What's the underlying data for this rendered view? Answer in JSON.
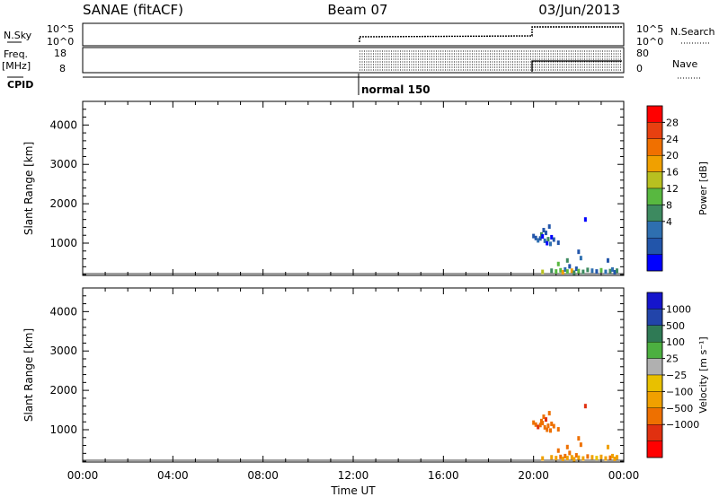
{
  "header": {
    "station": "SANAE (fitACF)",
    "beam": "Beam 07",
    "date": "03/Jun/2013"
  },
  "summary_panels": {
    "nsky_label": "N.Sky",
    "nsky_ticks": [
      "10^5",
      "10^0"
    ],
    "nsearch_label": "N.Search",
    "nsearch_ticks": [
      "10^5",
      "10^0"
    ],
    "freq_label_1": "Freq.",
    "freq_label_2": "[MHz]",
    "freq_ticks": [
      "18",
      "8"
    ],
    "nave_label": "Nave",
    "nave_ticks": [
      "80",
      "0"
    ],
    "cpid_label": "CPID",
    "cpid_text": "normal 150"
  },
  "colors": {
    "power": [
      "#0000ff",
      "#2255aa",
      "#2e6fb0",
      "#3d8a60",
      "#58b840",
      "#b8c020",
      "#f0a000",
      "#f07000",
      "#e84010",
      "#ff0000"
    ],
    "velocity": [
      "#1515cc",
      "#2244aa",
      "#2f7a55",
      "#4cb040",
      "#b0b0b0",
      "#e8c000",
      "#f0a000",
      "#ee7000",
      "#e03010",
      "#ff0000"
    ]
  },
  "chart_data": [
    {
      "type": "scatter",
      "title": "",
      "xlabel": "Time UT",
      "ylabel": "Slant Range [km]",
      "xlim": [
        0,
        24
      ],
      "ylim": [
        180,
        4600
      ],
      "x_ticks": [
        "00:00",
        "04:00",
        "08:00",
        "12:00",
        "16:00",
        "20:00",
        "00:00"
      ],
      "y_ticks": [
        "1000",
        "2000",
        "3000",
        "4000"
      ],
      "colorbar_label": "Power [dB]",
      "colorbar_ticks": [
        "28",
        "24",
        "20",
        "16",
        "12",
        "8",
        "4"
      ],
      "series": [
        {
          "points": [
            [
              20.0,
              1180,
              3
            ],
            [
              20.1,
              1130,
              4
            ],
            [
              20.2,
              1070,
              6
            ],
            [
              20.3,
              1120,
              3
            ],
            [
              20.35,
              1220,
              9
            ],
            [
              20.4,
              1170,
              2
            ],
            [
              20.45,
              1330,
              3
            ],
            [
              20.5,
              1060,
              8
            ],
            [
              20.55,
              1260,
              3
            ],
            [
              20.6,
              1000,
              2
            ],
            [
              20.65,
              1100,
              10
            ],
            [
              20.7,
              1420,
              5
            ],
            [
              20.75,
              980,
              7
            ],
            [
              20.8,
              1150,
              2
            ],
            [
              20.9,
              1090,
              3
            ],
            [
              21.1,
              1010,
              3
            ],
            [
              22.0,
              780,
              4
            ],
            [
              22.3,
              1600,
              2
            ],
            [
              20.4,
              270,
              17
            ],
            [
              20.8,
              300,
              9
            ],
            [
              21.0,
              280,
              14
            ],
            [
              21.2,
              310,
              12
            ],
            [
              21.3,
              260,
              20
            ],
            [
              21.4,
              330,
              8
            ],
            [
              21.5,
              280,
              13
            ],
            [
              21.6,
              410,
              5
            ],
            [
              21.7,
              300,
              19
            ],
            [
              21.8,
              250,
              9
            ],
            [
              21.9,
              350,
              4
            ],
            [
              22.0,
              290,
              12
            ],
            [
              22.2,
              270,
              10
            ],
            [
              22.4,
              320,
              11
            ],
            [
              22.6,
              300,
              7
            ],
            [
              22.8,
              280,
              5
            ],
            [
              23.0,
              310,
              12
            ],
            [
              23.2,
              270,
              6
            ],
            [
              23.4,
              290,
              10
            ],
            [
              23.5,
              330,
              7
            ],
            [
              23.6,
              260,
              5
            ],
            [
              23.7,
              300,
              9
            ],
            [
              21.1,
              470,
              14
            ],
            [
              21.5,
              560,
              11
            ],
            [
              22.1,
              620,
              6
            ],
            [
              23.3,
              560,
              3
            ]
          ]
        }
      ]
    },
    {
      "type": "scatter",
      "title": "",
      "xlabel": "Time UT",
      "ylabel": "Slant Range [km]",
      "xlim": [
        0,
        24
      ],
      "ylim": [
        180,
        4600
      ],
      "x_ticks": [
        "00:00",
        "04:00",
        "08:00",
        "12:00",
        "16:00",
        "20:00",
        "00:00"
      ],
      "y_ticks": [
        "1000",
        "2000",
        "3000",
        "4000"
      ],
      "colorbar_label": "Velocity [m s⁻¹]",
      "colorbar_ticks": [
        "1000",
        "500",
        "100",
        "25",
        "−25",
        "−100",
        "−500",
        "−1000"
      ],
      "series": [
        {
          "points": [
            [
              20.0,
              1180,
              -500
            ],
            [
              20.1,
              1130,
              -300
            ],
            [
              20.2,
              1070,
              -600
            ],
            [
              20.3,
              1120,
              -400
            ],
            [
              20.35,
              1220,
              -300
            ],
            [
              20.4,
              1170,
              -200
            ],
            [
              20.45,
              1330,
              -500
            ],
            [
              20.5,
              1060,
              -400
            ],
            [
              20.55,
              1260,
              -600
            ],
            [
              20.6,
              1000,
              -300
            ],
            [
              20.65,
              1100,
              -150
            ],
            [
              20.7,
              1420,
              -500
            ],
            [
              20.75,
              980,
              -300
            ],
            [
              20.8,
              1150,
              -400
            ],
            [
              20.9,
              1090,
              -200
            ],
            [
              21.1,
              1010,
              -300
            ],
            [
              22.0,
              780,
              -150
            ],
            [
              22.3,
              1600,
              -800
            ],
            [
              20.4,
              270,
              -50
            ],
            [
              20.8,
              300,
              -80
            ],
            [
              21.0,
              280,
              -40
            ],
            [
              21.2,
              310,
              -150
            ],
            [
              21.3,
              260,
              -60
            ],
            [
              21.4,
              330,
              -200
            ],
            [
              21.5,
              280,
              -50
            ],
            [
              21.6,
              410,
              -120
            ],
            [
              21.7,
              300,
              -40
            ],
            [
              21.8,
              250,
              -70
            ],
            [
              21.9,
              350,
              -150
            ],
            [
              22.0,
              290,
              -60
            ],
            [
              22.2,
              270,
              -50
            ],
            [
              22.4,
              320,
              -120
            ],
            [
              22.6,
              300,
              -40
            ],
            [
              22.8,
              280,
              10
            ],
            [
              23.0,
              310,
              -60
            ],
            [
              23.2,
              270,
              -30
            ],
            [
              23.4,
              290,
              -150
            ],
            [
              23.5,
              330,
              -50
            ],
            [
              23.6,
              260,
              -70
            ],
            [
              23.7,
              300,
              -40
            ],
            [
              21.1,
              470,
              -200
            ],
            [
              21.5,
              560,
              -300
            ],
            [
              22.1,
              620,
              -200
            ],
            [
              23.3,
              560,
              -100
            ]
          ]
        }
      ]
    }
  ]
}
